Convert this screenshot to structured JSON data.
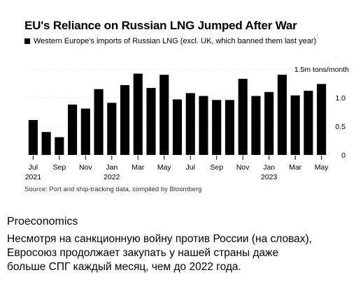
{
  "chart_data": {
    "type": "bar",
    "title": "EU's Reliance on Russian LNG Jumped After War",
    "legend": "Western Europe's imports of Russian LNG (excl. UK, which banned them last year)",
    "unit_label": "1.5m tons/month",
    "y_ticks": [
      "0",
      "0.5",
      "1.0"
    ],
    "ylim": [
      0,
      1.55
    ],
    "x_tick_labels": [
      {
        "index": 0,
        "label": "Jul",
        "year": "2021"
      },
      {
        "index": 2,
        "label": "Sep",
        "year": ""
      },
      {
        "index": 4,
        "label": "Nov",
        "year": ""
      },
      {
        "index": 6,
        "label": "Jan",
        "year": "2022"
      },
      {
        "index": 8,
        "label": "Mar",
        "year": ""
      },
      {
        "index": 10,
        "label": "May",
        "year": ""
      },
      {
        "index": 12,
        "label": "Jul",
        "year": ""
      },
      {
        "index": 14,
        "label": "Sep",
        "year": ""
      },
      {
        "index": 16,
        "label": "Nov",
        "year": ""
      },
      {
        "index": 18,
        "label": "Jan",
        "year": "2023"
      },
      {
        "index": 20,
        "label": "Mar",
        "year": ""
      },
      {
        "index": 22,
        "label": "May",
        "year": ""
      }
    ],
    "categories": [
      "Jul 2021",
      "Aug 2021",
      "Sep 2021",
      "Oct 2021",
      "Nov 2021",
      "Dec 2021",
      "Jan 2022",
      "Feb 2022",
      "Mar 2022",
      "Apr 2022",
      "May 2022",
      "Jun 2022",
      "Jul 2022",
      "Aug 2022",
      "Sep 2022",
      "Oct 2022",
      "Nov 2022",
      "Dec 2022",
      "Jan 2023",
      "Feb 2023",
      "Mar 2023",
      "Apr 2023",
      "May 2023"
    ],
    "values": [
      0.61,
      0.4,
      0.31,
      0.88,
      0.81,
      1.15,
      0.91,
      1.22,
      1.42,
      1.17,
      1.4,
      0.97,
      1.08,
      1.03,
      0.96,
      0.96,
      1.33,
      1.03,
      1.1,
      1.4,
      1.04,
      1.12,
      1.24
    ],
    "color": "#000000",
    "source": "Source: Port and ship-tracking data, compiled by Bloomberg"
  },
  "post": {
    "author": "Proeconomics",
    "lines": [
      "Несмотря на санкционную войну против России (на словах),",
      "Евросоюз продолжает закупать у нашей страны даже",
      "больше СПГ каждый месяц, чем до 2022 года."
    ]
  }
}
